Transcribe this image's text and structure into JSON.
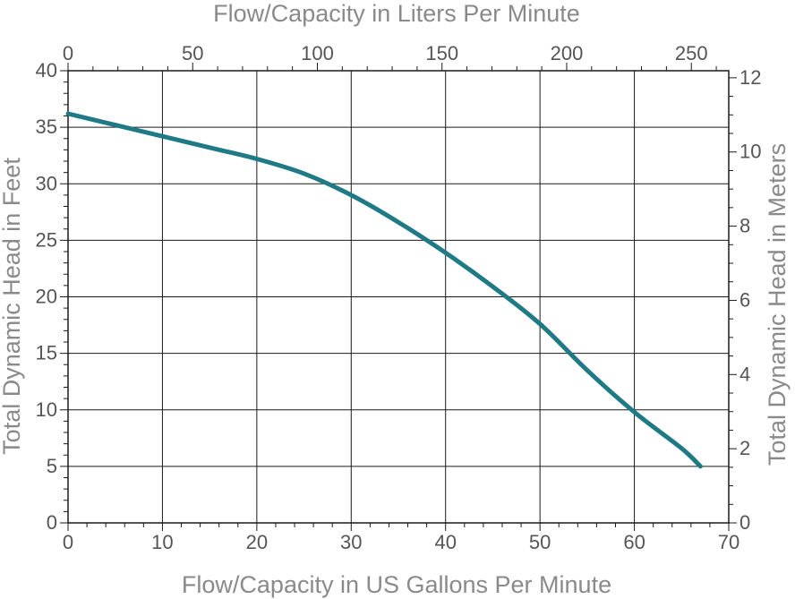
{
  "chart_data": {
    "type": "line",
    "x_bottom_label": "Flow/Capacity in US Gallons Per Minute",
    "x_top_label": "Flow/Capacity in Liters Per Minute",
    "y_left_label": "Total Dynamic Head in Feet",
    "y_right_label": "Total Dynamic Head in Meters",
    "x_bottom_range": [
      0,
      70
    ],
    "x_bottom_ticks": [
      0,
      10,
      20,
      30,
      40,
      50,
      60,
      70
    ],
    "x_top_range": [
      0,
      265
    ],
    "x_top_ticks": [
      0,
      50,
      100,
      150,
      200,
      250
    ],
    "y_left_range": [
      0,
      40
    ],
    "y_left_ticks": [
      0,
      5,
      10,
      15,
      20,
      25,
      30,
      35,
      40
    ],
    "y_right_range": [
      0,
      12.19
    ],
    "y_right_ticks": [
      0,
      2,
      4,
      6,
      8,
      10,
      12
    ],
    "grid": true,
    "line_color": "#1f7a86",
    "series": [
      {
        "x": [
          0,
          5,
          10,
          15,
          20,
          25,
          30,
          35,
          40,
          45,
          50,
          55,
          60,
          65,
          67
        ],
        "y": [
          36.2,
          35.2,
          34.2,
          33.2,
          32.2,
          30.9,
          29.0,
          26.6,
          23.9,
          20.9,
          17.6,
          13.5,
          9.8,
          6.6,
          5.0
        ]
      }
    ]
  }
}
